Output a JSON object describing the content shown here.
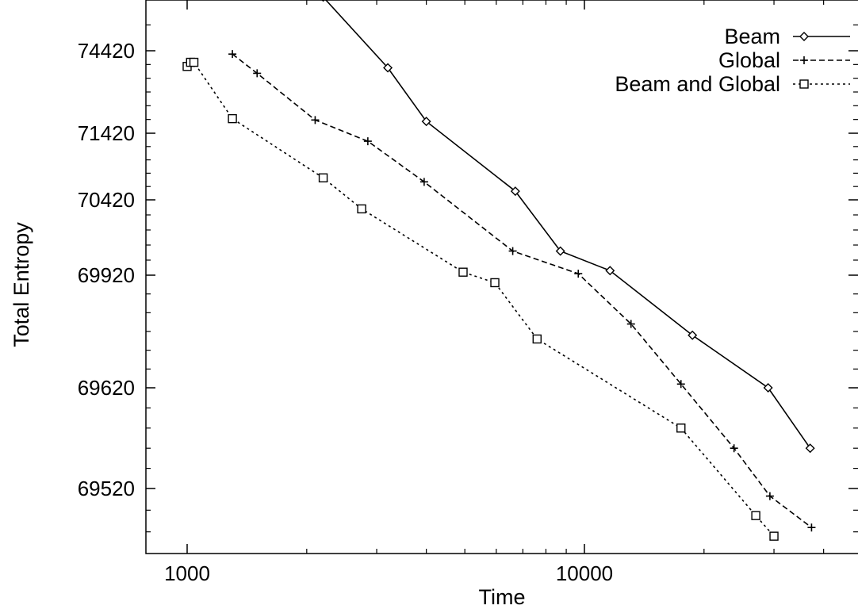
{
  "chart_data": {
    "type": "line",
    "xlabel": "Time",
    "ylabel": "Total Entropy",
    "x_scale": "log",
    "y_scale": "log-like (uneven, compressed toward top)",
    "xlim": [
      900,
      45000
    ],
    "x_ticks": [
      {
        "value": 1000,
        "label": "1000"
      },
      {
        "value": 10000,
        "label": "10000"
      }
    ],
    "y_ticks": [
      {
        "value": 74420,
        "label": "74420"
      },
      {
        "value": 71420,
        "label": "71420"
      },
      {
        "value": 70420,
        "label": "70420"
      },
      {
        "value": 69920,
        "label": "69920"
      },
      {
        "value": 69620,
        "label": "69620"
      },
      {
        "value": 69520,
        "label": "69520"
      }
    ],
    "grid": false,
    "legend_position": "top-right",
    "series": [
      {
        "name": "Beam",
        "marker": "diamond",
        "line_style": "solid",
        "points": [
          [
            2200,
            76500
          ],
          [
            3200,
            73800
          ],
          [
            4000,
            71850
          ],
          [
            6700,
            70550
          ],
          [
            8700,
            70080
          ],
          [
            11600,
            69950
          ],
          [
            18700,
            69760
          ],
          [
            29000,
            69620
          ],
          [
            37000,
            69560
          ]
        ]
      },
      {
        "name": "Global",
        "marker": "plus",
        "line_style": "dashed",
        "points": [
          [
            1300,
            74300
          ],
          [
            1500,
            73600
          ],
          [
            2100,
            71900
          ],
          [
            2850,
            71300
          ],
          [
            3950,
            70690
          ],
          [
            6600,
            70080
          ],
          [
            9650,
            69930
          ],
          [
            13100,
            69790
          ],
          [
            17500,
            69630
          ],
          [
            23800,
            69560
          ],
          [
            29300,
            69513
          ],
          [
            37300,
            69484
          ]
        ]
      },
      {
        "name": "Beam and Global",
        "marker": "square",
        "line_style": "dotted",
        "points": [
          [
            1000,
            73850
          ],
          [
            1020,
            74000
          ],
          [
            1040,
            74000
          ],
          [
            1300,
            71950
          ],
          [
            2200,
            70750
          ],
          [
            2750,
            70360
          ],
          [
            4950,
            69940
          ],
          [
            5950,
            69900
          ],
          [
            7600,
            69750
          ],
          [
            17500,
            69580
          ],
          [
            27000,
            69495
          ],
          [
            30000,
            69476
          ]
        ]
      }
    ]
  }
}
